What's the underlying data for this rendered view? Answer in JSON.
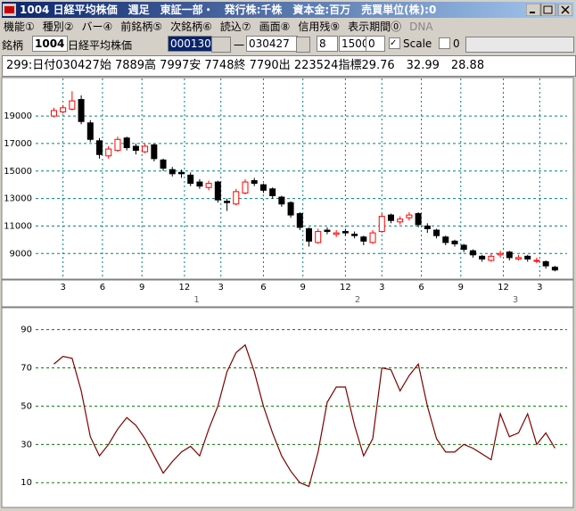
{
  "window": {
    "title": "1004 日経平均株価　週足　東証一部・　発行株:千株　資本金:百万　売買単位(株):0",
    "menu": [
      "機能①",
      "種別②",
      "バー④",
      "前銘柄⑤",
      "次銘柄⑥",
      "読込⑦",
      "画面⑧",
      "信用残⑨",
      "表示期間⓪",
      "DNA"
    ],
    "toolbar": {
      "label": "銘柄",
      "code": "1004",
      "name": "日経平均株価",
      "field": "000130",
      "separator": "一",
      "date": "030427",
      "count": "8",
      "size": "1500",
      "offset": "0",
      "scale": "Scale",
      "scale_value": "0"
    },
    "info": "299:日付030427始 7889高 7997安 7748終 7790出 223524指標29.76　32.99　28.88"
  },
  "chart_data": [
    {
      "type": "candlestick",
      "x": [
        3,
        6,
        9,
        12,
        15,
        18,
        21,
        24,
        27,
        30,
        33,
        36,
        39,
        42,
        45,
        48,
        51,
        54,
        57,
        60,
        63,
        66,
        69,
        72,
        75,
        78,
        81,
        84,
        87,
        90,
        93,
        96,
        99,
        102,
        105,
        108,
        111,
        114,
        117,
        120,
        123,
        126,
        129,
        132,
        135,
        138,
        141,
        144,
        147,
        150,
        153,
        156,
        159,
        162,
        165,
        168
      ],
      "open": [
        19000,
        19300,
        19500,
        20200,
        18500,
        17200,
        16100,
        16500,
        17400,
        16800,
        16400,
        16900,
        15800,
        15100,
        14900,
        14700,
        14200,
        13800,
        14200,
        12800,
        12600,
        13400,
        14300,
        14000,
        13700,
        13100,
        12700,
        11900,
        10800,
        9800,
        10700,
        10400,
        10600,
        10400,
        10200,
        9800,
        10600,
        11800,
        11300,
        11600,
        11900,
        11000,
        10700,
        10200,
        9900,
        9600,
        9200,
        8800,
        8500,
        8900,
        9100,
        8600,
        8800,
        8500,
        8400,
        8000
      ],
      "high": [
        19600,
        19800,
        20800,
        20500,
        18700,
        17400,
        16800,
        17500,
        17500,
        17000,
        17000,
        17000,
        15900,
        15300,
        15100,
        14900,
        14400,
        14300,
        14300,
        13000,
        13700,
        14400,
        14500,
        14100,
        13800,
        13200,
        12800,
        12000,
        10900,
        10800,
        10900,
        10700,
        10800,
        10600,
        10300,
        10700,
        11900,
        11900,
        11700,
        12000,
        12000,
        11200,
        10800,
        10300,
        10000,
        9700,
        9300,
        8900,
        9000,
        9200,
        9200,
        8900,
        8900,
        8700,
        8500,
        8100
      ],
      "low": [
        18900,
        19200,
        19400,
        18400,
        17100,
        15900,
        15900,
        16400,
        16500,
        16200,
        16300,
        15700,
        15000,
        14600,
        14500,
        13900,
        13700,
        13600,
        12700,
        12100,
        12500,
        13300,
        13900,
        13400,
        13000,
        12400,
        11600,
        10700,
        9500,
        9700,
        10400,
        10200,
        10300,
        10100,
        9600,
        9700,
        10500,
        11200,
        11100,
        11400,
        10900,
        10500,
        10100,
        9600,
        9500,
        9100,
        8700,
        8400,
        8400,
        8700,
        8500,
        8500,
        8400,
        8300,
        7900,
        7700
      ],
      "close": [
        19400,
        19600,
        20100,
        18600,
        17300,
        16200,
        16600,
        17300,
        16700,
        16500,
        16800,
        15900,
        15200,
        14800,
        14800,
        14100,
        13900,
        14100,
        12900,
        12700,
        13500,
        14200,
        14100,
        13600,
        13200,
        12600,
        11800,
        10900,
        9900,
        10600,
        10600,
        10500,
        10500,
        10300,
        9900,
        10500,
        11700,
        11400,
        11500,
        11800,
        11100,
        10800,
        10300,
        9800,
        9700,
        9300,
        8900,
        8600,
        8800,
        9000,
        8700,
        8700,
        8600,
        8500,
        8100,
        7800
      ],
      "up_color": "#ff0000",
      "down_color": "#000000",
      "grid_color": "#008080",
      "xlim": [
        -3,
        172
      ],
      "xticks": [
        {
          "value": 6,
          "label": "3"
        },
        {
          "value": 19,
          "label": "6"
        },
        {
          "value": 32,
          "label": "9"
        },
        {
          "value": 46,
          "label": "12"
        },
        {
          "value": 58,
          "label": "3"
        },
        {
          "value": 72,
          "label": "6"
        },
        {
          "value": 85,
          "label": "9"
        },
        {
          "value": 99,
          "label": "12"
        },
        {
          "value": 111,
          "label": "3"
        },
        {
          "value": 124,
          "label": "6"
        },
        {
          "value": 137,
          "label": "9"
        },
        {
          "value": 151,
          "label": "12"
        },
        {
          "value": 163,
          "label": "3"
        }
      ],
      "year_ticks": [
        {
          "value": 50,
          "label": "1"
        },
        {
          "value": 103,
          "label": "2"
        },
        {
          "value": 155,
          "label": "3"
        }
      ],
      "ylim": [
        7200,
        21600
      ],
      "yticks": [
        9000,
        11000,
        13000,
        15000,
        17000,
        19000
      ],
      "grid": true
    },
    {
      "type": "line",
      "x": [
        3,
        6,
        9,
        12,
        15,
        18,
        21,
        24,
        27,
        30,
        33,
        36,
        39,
        42,
        45,
        48,
        51,
        54,
        57,
        60,
        63,
        66,
        69,
        72,
        75,
        78,
        81,
        84,
        87,
        90,
        93,
        96,
        99,
        102,
        105,
        108,
        111,
        114,
        117,
        120,
        123,
        126,
        129,
        132,
        135,
        138,
        141,
        144,
        147,
        150,
        153,
        156,
        159,
        162,
        165,
        168
      ],
      "values": [
        72,
        76,
        75,
        58,
        34,
        24,
        30,
        38,
        44,
        40,
        33,
        24,
        15,
        21,
        26,
        29,
        24,
        38,
        50,
        68,
        78,
        82,
        68,
        50,
        36,
        24,
        16,
        10,
        8,
        26,
        52,
        60,
        60,
        40,
        24,
        33,
        70,
        69,
        58,
        66,
        72,
        50,
        33,
        26,
        26,
        30,
        28,
        25,
        22,
        46,
        34,
        36,
        46,
        30,
        36,
        28
      ],
      "color": "#800000",
      "grid_color": "#008000",
      "xlim": [
        -3,
        172
      ],
      "ylim": [
        -2.5,
        101.5
      ],
      "yticks": [
        10,
        30,
        50,
        70,
        90
      ],
      "grid": true
    }
  ]
}
